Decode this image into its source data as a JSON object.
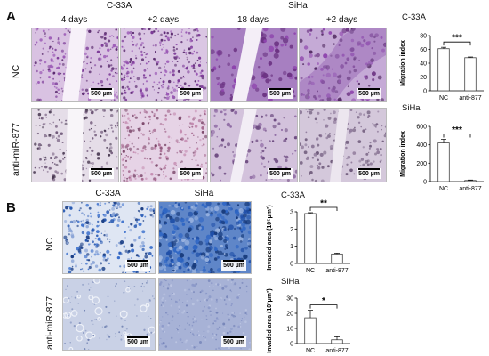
{
  "panel_a": {
    "letter": "A",
    "groups": [
      {
        "cell_line": "C-33A",
        "columns": [
          "4 days",
          "+2 days"
        ]
      },
      {
        "cell_line": "SiHa",
        "columns": [
          "18 days",
          "+2 days"
        ]
      }
    ],
    "rows": [
      "NC",
      "anti-miR-877"
    ],
    "scale_bar": "500 µm"
  },
  "panel_b": {
    "letter": "B",
    "columns": [
      "C-33A",
      "SiHa"
    ],
    "rows": [
      "NC",
      "anti-miR-877"
    ],
    "scale_bar": "500 µm"
  },
  "colors": {
    "migration_stain": "#7d3c98",
    "invasion_stain": "#2255b0",
    "bar_fill": "#ffffff",
    "bar_stroke": "#444444"
  },
  "chart_data": [
    {
      "type": "bar",
      "title": "C-33A",
      "categories": [
        "NC",
        "anti-877"
      ],
      "values": [
        61,
        48
      ],
      "errors": [
        2,
        1
      ],
      "ylabel": "Migration index",
      "ylim": [
        0,
        80
      ],
      "yticks": [
        0,
        20,
        40,
        60,
        80
      ],
      "significance": "***"
    },
    {
      "type": "bar",
      "title": "SiHa",
      "categories": [
        "NC",
        "anti-877"
      ],
      "values": [
        420,
        12
      ],
      "errors": [
        40,
        5
      ],
      "ylabel": "Migration index",
      "ylim": [
        0,
        600
      ],
      "yticks": [
        0,
        200,
        400,
        600
      ],
      "significance": "***"
    },
    {
      "type": "bar",
      "title": "C-33A",
      "categories": [
        "NC",
        "anti-877"
      ],
      "values": [
        2.9,
        0.55
      ],
      "errors": [
        0.05,
        0.05
      ],
      "ylabel": "Invaded area (10⁵μm²)",
      "ylim": [
        0,
        3
      ],
      "yticks": [
        0,
        1,
        2,
        3
      ],
      "significance": "**"
    },
    {
      "type": "bar",
      "title": "SiHa",
      "categories": [
        "NC",
        "anti-877"
      ],
      "values": [
        17,
        2.5
      ],
      "errors": [
        5,
        2
      ],
      "ylabel": "Invaded area (10³μm²)",
      "ylim": [
        0,
        30
      ],
      "yticks": [
        0,
        10,
        20,
        30
      ],
      "significance": "*"
    }
  ]
}
